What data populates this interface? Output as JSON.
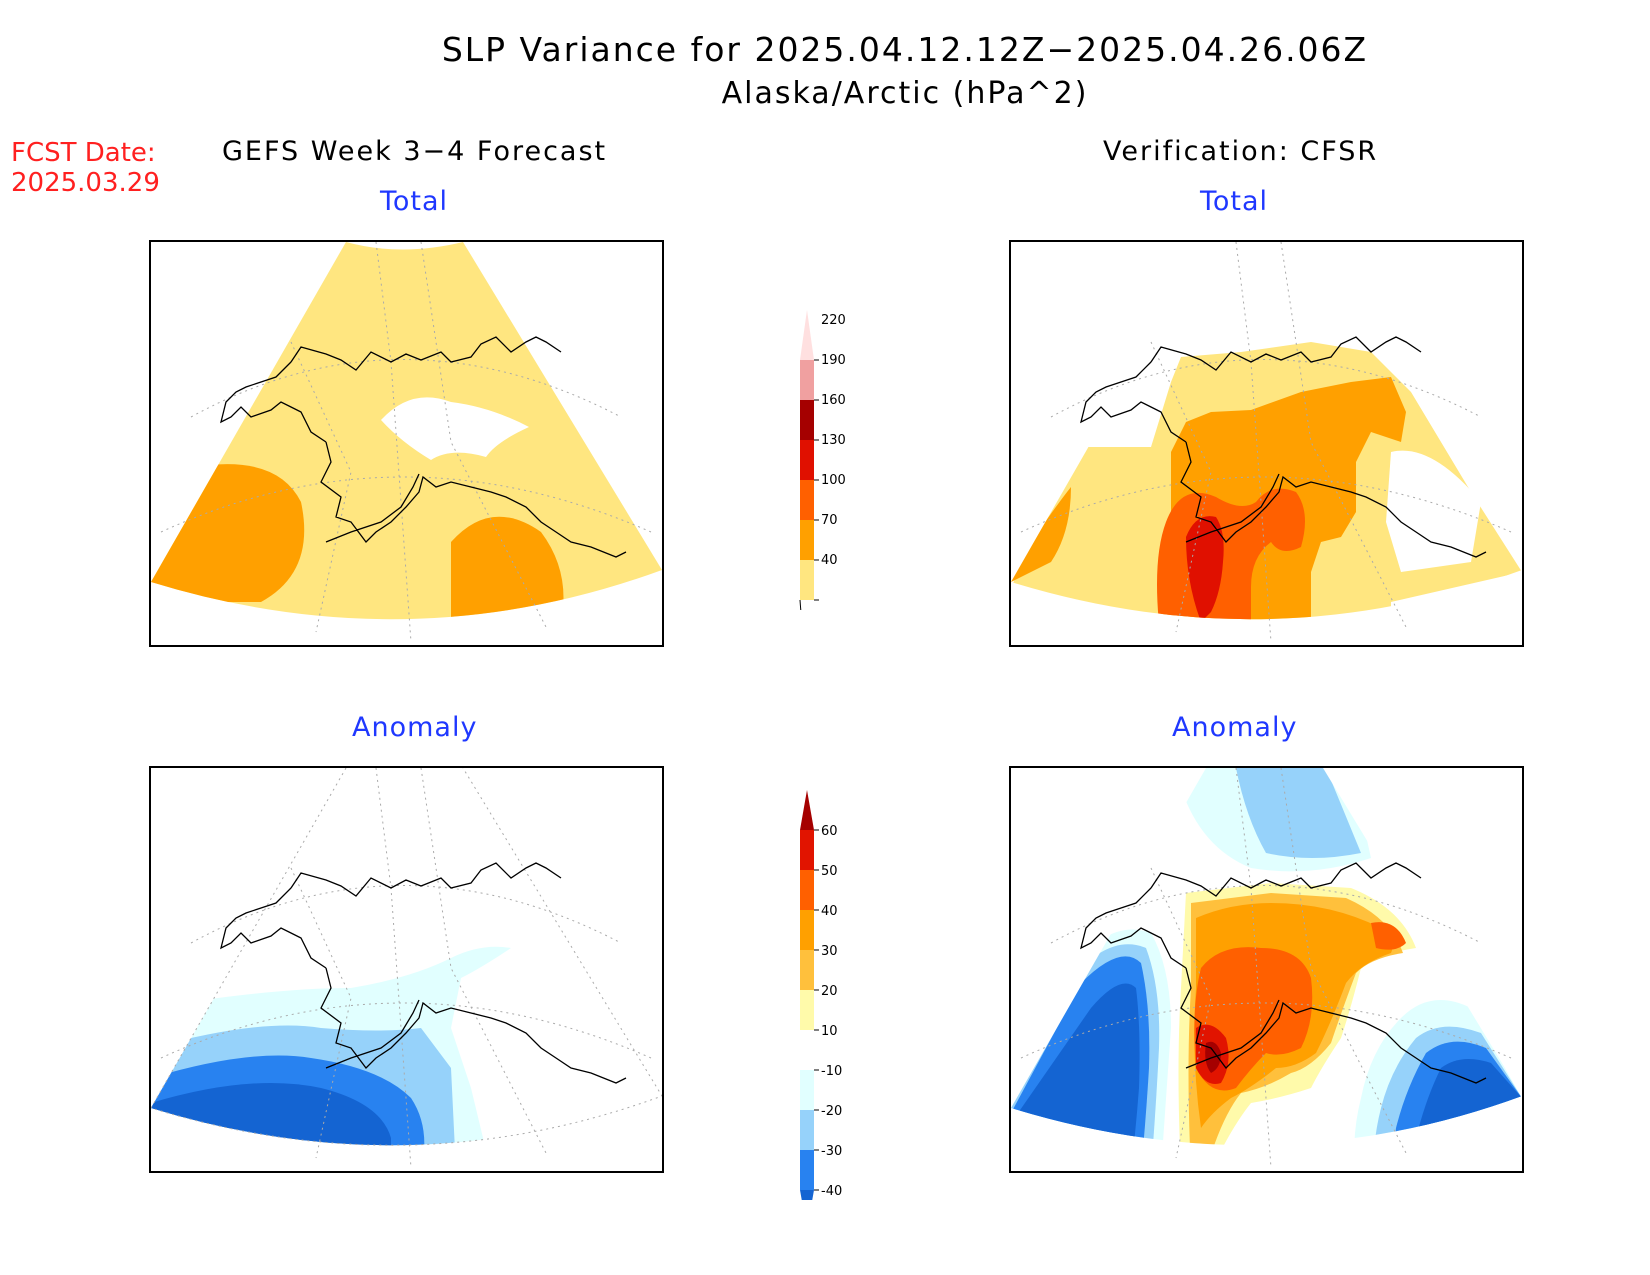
{
  "title": {
    "line1": "SLP Variance for 2025.04.12.12Z−2025.04.26.06Z",
    "line2": "Alaska/Arctic (hPa^2)"
  },
  "fcst_date": {
    "label": "FCST Date:",
    "value": "2025.03.29"
  },
  "columns": {
    "left": "GEFS Week 3−4 Forecast",
    "right": "Verification: CFSR"
  },
  "panels": {
    "top_left": "Total",
    "top_right": "Total",
    "bottom_left": "Anomaly",
    "bottom_right": "Anomaly"
  },
  "colorbar_total": {
    "labels": [
      "40",
      "70",
      "100",
      "130",
      "160",
      "190",
      "220"
    ],
    "colors": [
      "#ffe680",
      "#ffa000",
      "#ff6000",
      "#e01000",
      "#a50000",
      "#f0a0a0",
      "#ffe0e0"
    ]
  },
  "colorbar_anomaly": {
    "labels": [
      "-40",
      "-30",
      "-20",
      "-10",
      "10",
      "20",
      "30",
      "40",
      "50",
      "60"
    ],
    "colors": [
      "#1464d2",
      "#2882f0",
      "#96d2fa",
      "#e1ffff",
      "#ffffff",
      "#fffaaa",
      "#ffc03c",
      "#ffa000",
      "#ff6000",
      "#e11400",
      "#a50000"
    ]
  }
}
